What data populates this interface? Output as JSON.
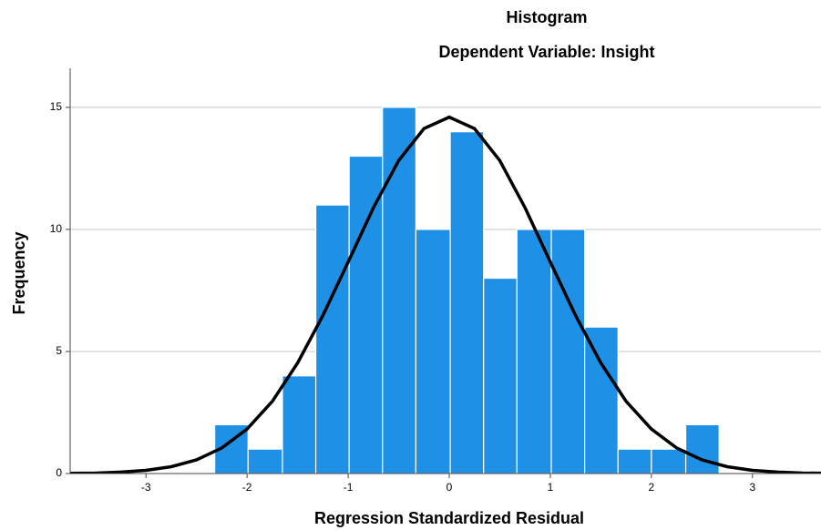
{
  "chart_data": {
    "type": "histogram",
    "title": "Histogram",
    "subtitle": "Dependent Variable: Insight",
    "x_label": "Regression Standardized Residual",
    "y_label": "Frequency",
    "bins": [
      -2.32,
      -1.99,
      -1.65,
      -1.32,
      -0.99,
      -0.66,
      -0.33,
      0.01,
      0.34,
      0.67,
      1.01,
      1.34,
      1.67,
      2.0,
      2.34,
      2.67
    ],
    "counts": [
      2,
      1,
      4,
      11,
      13,
      15,
      10,
      14,
      8,
      10,
      10,
      6,
      1,
      1,
      2
    ],
    "color": "#1e90e6",
    "xlim": [
      -3.75,
      3.75
    ],
    "ylim": [
      0,
      16.6
    ],
    "xticks": [
      -3,
      -2,
      -1,
      0,
      1,
      2,
      3
    ],
    "yticks": [
      0,
      5,
      10,
      15
    ],
    "grid": true,
    "curve": {
      "color": "#000000",
      "x": [
        -3.75,
        -3.5,
        -3.25,
        -3.0,
        -2.75,
        -2.5,
        -2.25,
        -2.0,
        -1.75,
        -1.5,
        -1.25,
        -1.0,
        -0.75,
        -0.5,
        -0.25,
        0,
        0.25,
        0.5,
        0.75,
        1.0,
        1.25,
        1.5,
        1.75,
        2.0,
        2.25,
        2.5,
        2.75,
        3.0,
        3.25,
        3.5,
        3.75
      ],
      "values": [
        0.01,
        0.02,
        0.06,
        0.13,
        0.28,
        0.56,
        1.05,
        1.82,
        2.96,
        4.53,
        6.47,
        8.67,
        10.89,
        12.82,
        14.13,
        14.6,
        14.13,
        12.82,
        10.89,
        8.67,
        6.47,
        4.53,
        2.96,
        1.82,
        1.05,
        0.56,
        0.28,
        0.13,
        0.06,
        0.02,
        0.01
      ]
    }
  }
}
